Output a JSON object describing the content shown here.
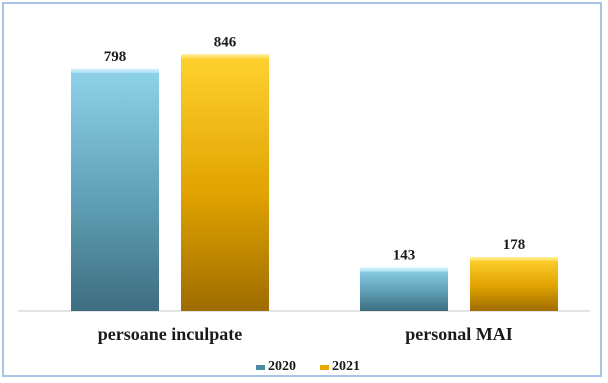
{
  "chart_data": {
    "type": "bar",
    "categories": [
      "persoane inculpate",
      "personal MAI"
    ],
    "series": [
      {
        "name": "2020",
        "values": [
          798,
          143
        ],
        "color": "#4f8ba0"
      },
      {
        "name": "2021",
        "values": [
          846,
          178
        ],
        "color": "#e8a800"
      }
    ],
    "title": "",
    "xlabel": "",
    "ylabel": "",
    "ylim": [
      0,
      880
    ],
    "grid": false,
    "legend": "bottom",
    "data_labels": true
  }
}
